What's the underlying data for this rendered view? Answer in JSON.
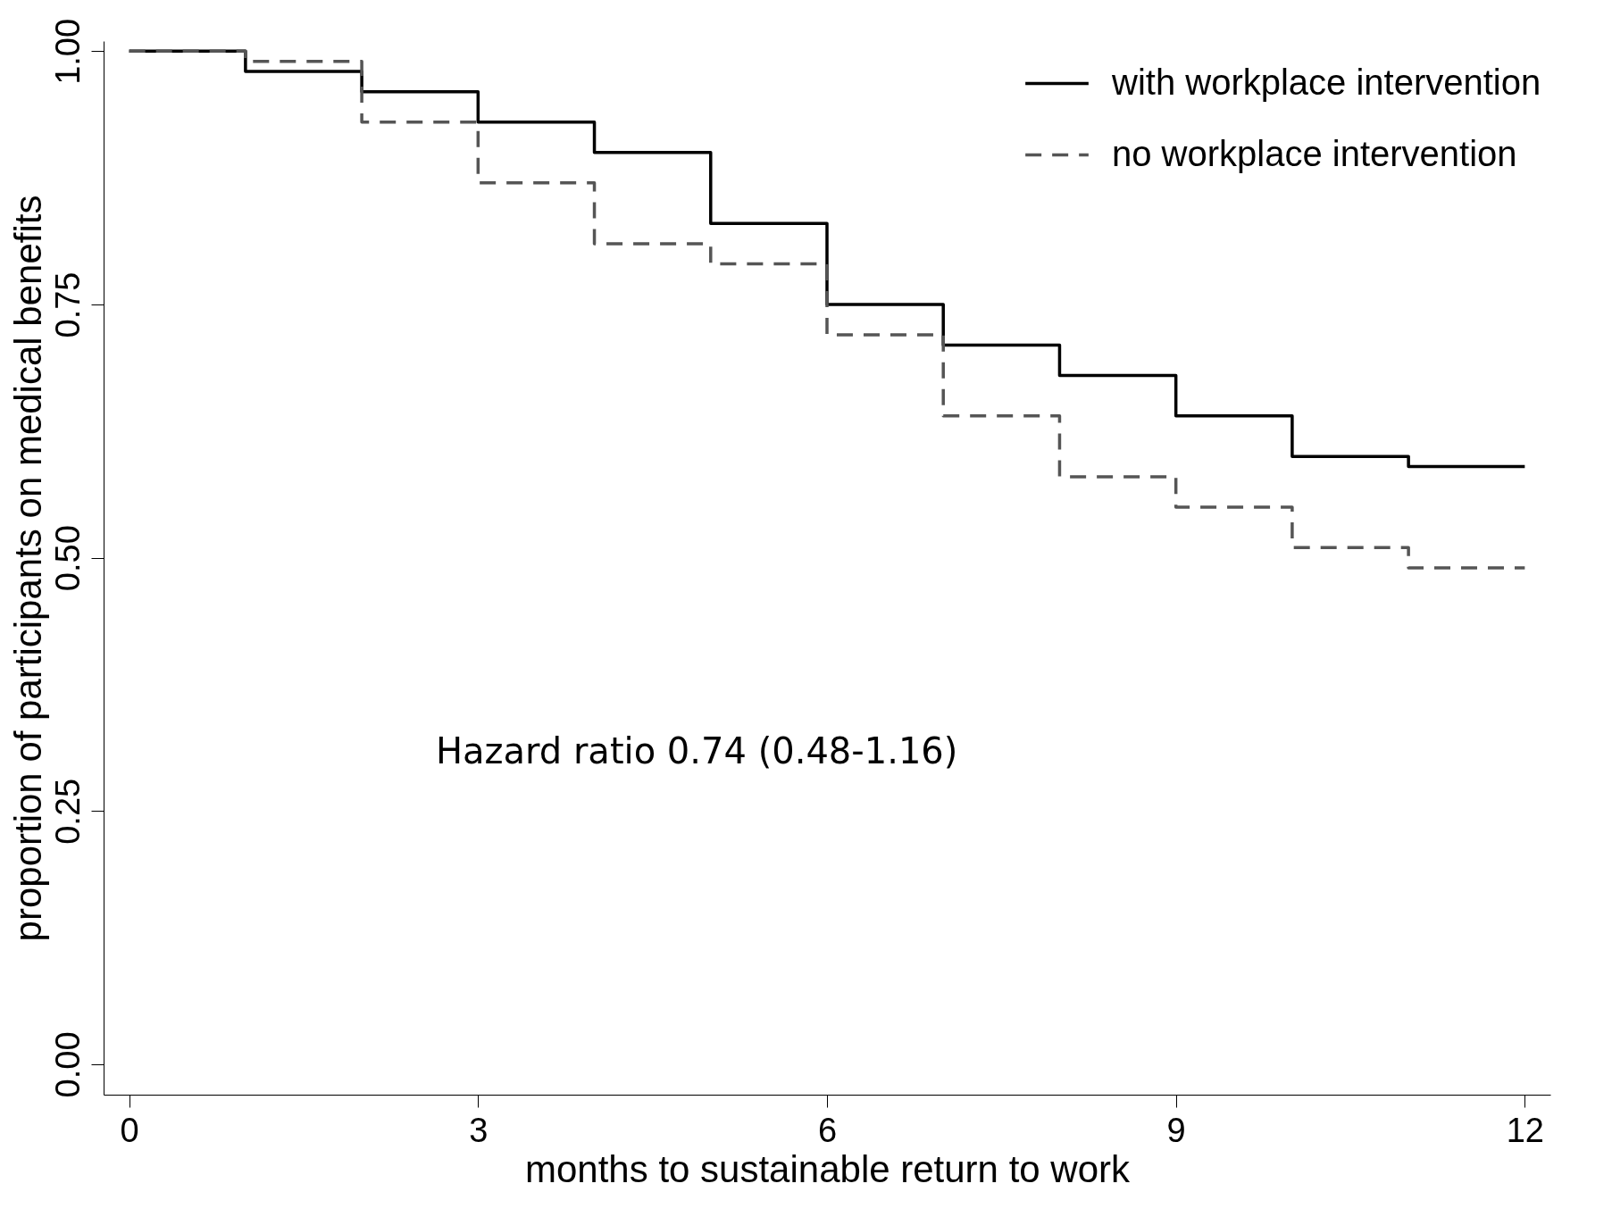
{
  "chart_data": {
    "type": "step",
    "xlabel": "months to sustainable return to work",
    "ylabel": "proportion of participants on medical benefits",
    "x": [
      0,
      1,
      2,
      3,
      4,
      5,
      6,
      7,
      8,
      9,
      10,
      11,
      12
    ],
    "series": [
      {
        "name": "with workplace intervention",
        "color": "#000000",
        "line_style": "solid",
        "values": [
          1.0,
          0.98,
          0.96,
          0.93,
          0.9,
          0.83,
          0.75,
          0.71,
          0.68,
          0.64,
          0.6,
          0.59,
          0.59
        ]
      },
      {
        "name": "no workplace intervention",
        "color": "#555555",
        "line_style": "dashed",
        "values": [
          1.0,
          0.99,
          0.93,
          0.87,
          0.81,
          0.79,
          0.72,
          0.64,
          0.58,
          0.55,
          0.51,
          0.49,
          0.49
        ]
      }
    ],
    "xlim": [
      -0.22,
      12.22
    ],
    "xticks": [
      0,
      3,
      6,
      9,
      12
    ],
    "ylim": [
      -0.03,
      1.01
    ],
    "yticks": [
      {
        "value": 0,
        "label": "0.00"
      },
      {
        "value": 0.25,
        "label": "0.25"
      },
      {
        "value": 0.5,
        "label": "0.50"
      },
      {
        "value": 0.75,
        "label": "0.75"
      },
      {
        "value": 1,
        "label": "1.00"
      }
    ],
    "annotations": [
      "Hazard ratio 0.74 (0.48-1.16)"
    ],
    "grid": false,
    "legend": "top right"
  }
}
